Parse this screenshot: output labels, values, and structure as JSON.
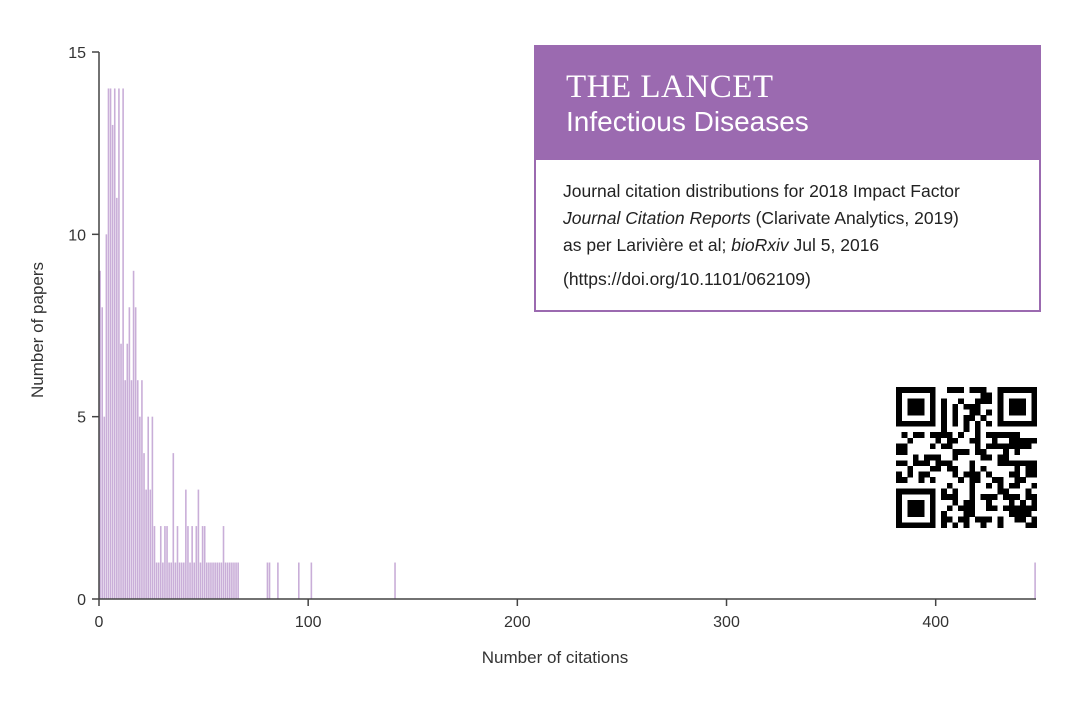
{
  "journal": {
    "name": "THE LANCET",
    "subtitle": "Infectious Diseases",
    "line1": "Journal citation distributions for 2018 Impact Factor",
    "line2_italic": "Journal Citation Reports",
    "line2_rest": " (Clarivate Analytics, 2019)",
    "line3_prefix": "as per Larivière et al; ",
    "line3_italic": "bioRxiv",
    "line3_suffix": " Jul 5, 2016",
    "doi": "(https://doi.org/10.1101/062109)"
  },
  "colors": {
    "bar": "#c9aed8",
    "brand": "#9b6ab0",
    "axis": "#444444"
  },
  "qr_icon": "qr-code-icon",
  "chart_data": {
    "type": "bar",
    "title": "",
    "xlabel": "Number of citations",
    "ylabel": "Number of papers",
    "xlim": [
      0,
      447
    ],
    "ylim": [
      0,
      15
    ],
    "xticks": [
      0,
      100,
      200,
      300,
      400
    ],
    "yticks": [
      0,
      5,
      10,
      15
    ],
    "grid": false,
    "x": [
      0,
      1,
      2,
      3,
      4,
      5,
      6,
      7,
      8,
      9,
      10,
      11,
      12,
      13,
      14,
      15,
      16,
      17,
      18,
      19,
      20,
      21,
      22,
      23,
      24,
      25,
      26,
      27,
      28,
      29,
      30,
      31,
      32,
      33,
      34,
      35,
      36,
      37,
      38,
      39,
      40,
      41,
      42,
      43,
      44,
      45,
      46,
      47,
      48,
      49,
      50,
      51,
      52,
      53,
      54,
      55,
      56,
      57,
      58,
      59,
      60,
      61,
      62,
      63,
      64,
      65,
      66,
      80,
      81,
      85,
      95,
      101,
      141,
      447
    ],
    "values": [
      9,
      8,
      5,
      10,
      14,
      14,
      13,
      14,
      11,
      14,
      7,
      14,
      6,
      7,
      8,
      6,
      9,
      8,
      6,
      5,
      6,
      4,
      3,
      5,
      3,
      5,
      2,
      1,
      1,
      2,
      1,
      2,
      2,
      1,
      1,
      4,
      1,
      2,
      1,
      1,
      1,
      3,
      2,
      1,
      2,
      1,
      2,
      3,
      1,
      2,
      2,
      1,
      1,
      1,
      1,
      1,
      1,
      1,
      1,
      2,
      1,
      1,
      1,
      1,
      1,
      1,
      1,
      1,
      1,
      1,
      1,
      1,
      1,
      1
    ]
  }
}
